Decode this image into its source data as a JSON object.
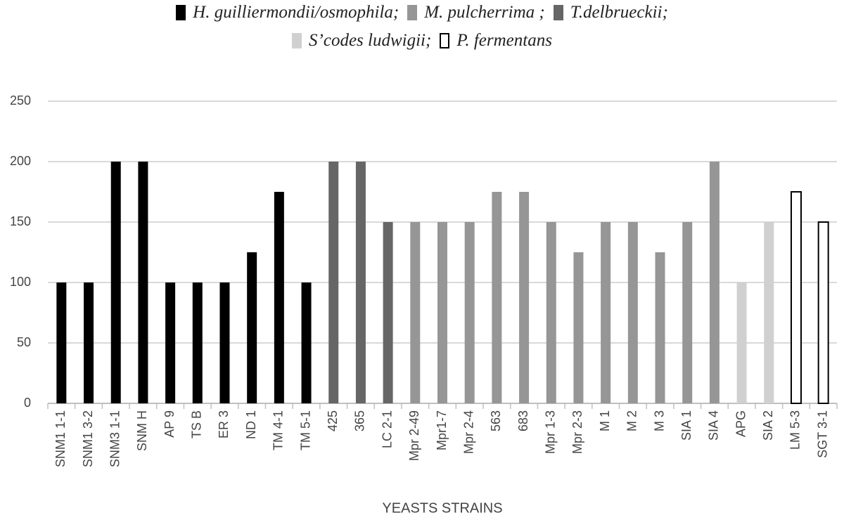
{
  "chart_data": {
    "type": "bar",
    "x_label": "YEASTS STRAINS",
    "categories": [
      "SNM1 1-1",
      "SNM1 3-2",
      "SNM3 1-1",
      "SNM H",
      "AP 9",
      "TS B",
      "ER 3",
      "ND 1",
      "TM 4-1",
      "TM 5-1",
      "425",
      "365",
      "LC 2-1",
      "Mpr 2-49",
      "Mpr1-7",
      "Mpr 2-4",
      "563",
      "683",
      "Mpr 1-3",
      "Mpr 2-3",
      "M 1",
      "M 2",
      "M 3",
      "SIA 1",
      "SIA 4",
      "APG",
      "SIA 2",
      "LM 5-3",
      "SGT 3-1"
    ],
    "series": [
      {
        "name": "H. guilliermondii/osmophila;",
        "color": "#000000",
        "values": [
          100,
          100,
          200,
          200,
          100,
          100,
          100,
          125,
          175,
          100,
          null,
          null,
          null,
          null,
          null,
          null,
          null,
          null,
          null,
          null,
          null,
          null,
          null,
          null,
          null,
          null,
          null,
          null,
          null
        ]
      },
      {
        "name": "M. pulcherrima ;",
        "color": "#969696",
        "values": [
          null,
          null,
          null,
          null,
          null,
          null,
          null,
          null,
          null,
          null,
          null,
          null,
          null,
          150,
          150,
          150,
          175,
          175,
          150,
          125,
          150,
          150,
          125,
          150,
          200,
          null,
          null,
          null,
          null
        ]
      },
      {
        "name": "T.delbrueckii;",
        "color": "#666666",
        "values": [
          null,
          null,
          null,
          null,
          null,
          null,
          null,
          null,
          null,
          null,
          200,
          200,
          150,
          null,
          null,
          null,
          null,
          null,
          null,
          null,
          null,
          null,
          null,
          null,
          null,
          null,
          null,
          null,
          null
        ]
      },
      {
        "name": "S’codes ludwigii;",
        "color": "#d0d0d0",
        "values": [
          null,
          null,
          null,
          null,
          null,
          null,
          null,
          null,
          null,
          null,
          null,
          null,
          null,
          null,
          null,
          null,
          null,
          null,
          null,
          null,
          null,
          null,
          null,
          null,
          null,
          100,
          150,
          null,
          null
        ]
      },
      {
        "name": "P. fermentans",
        "color": "#ffffff",
        "edgecolor": "#000000",
        "values": [
          null,
          null,
          null,
          null,
          null,
          null,
          null,
          null,
          null,
          null,
          null,
          null,
          null,
          null,
          null,
          null,
          null,
          null,
          null,
          null,
          null,
          null,
          null,
          null,
          null,
          null,
          null,
          175,
          150
        ]
      }
    ],
    "ylim": [
      0,
      250
    ],
    "yticks": [
      0,
      50,
      100,
      150,
      200,
      250
    ],
    "grid": true
  }
}
